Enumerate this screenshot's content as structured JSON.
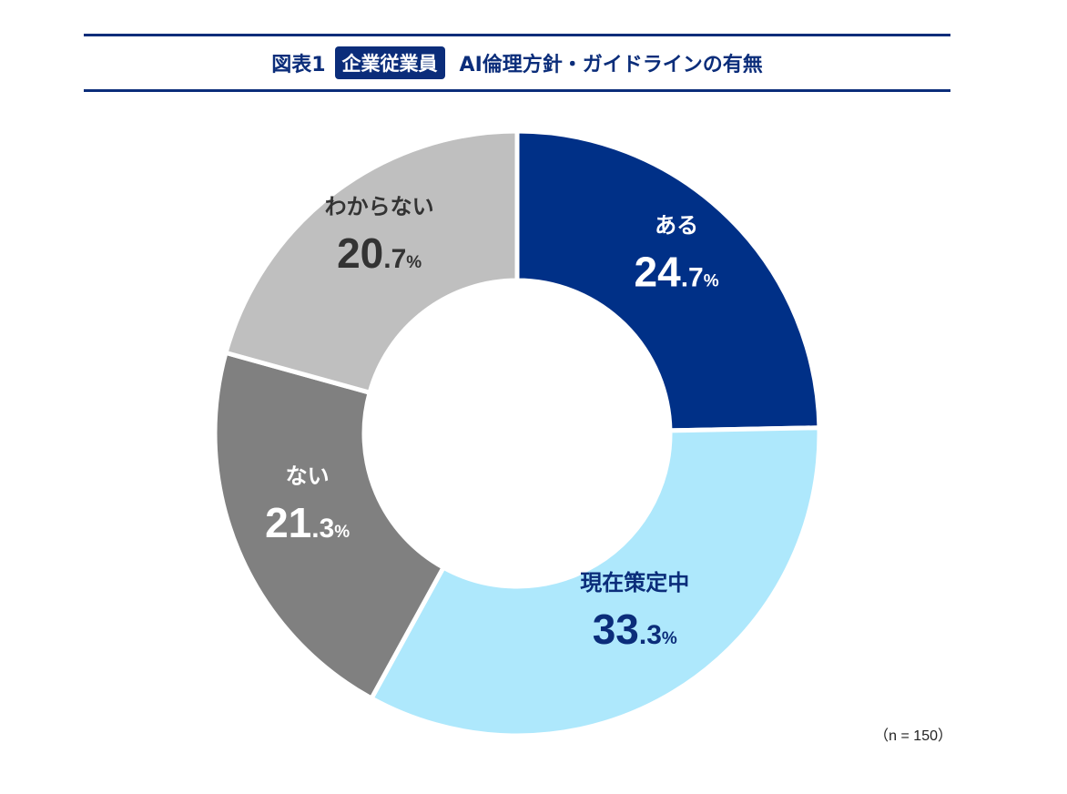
{
  "title": {
    "figure_label": "図表1",
    "badge": "企業従業員",
    "text": "AI倫理方針・ガイドラインの有無"
  },
  "chart_data": {
    "type": "pie",
    "variant": "donut",
    "slices": [
      {
        "label": "ある",
        "value": 24.7,
        "color": "#003087",
        "label_color": "#ffffff"
      },
      {
        "label": "現在策定中",
        "value": 33.3,
        "color": "#aee8fc",
        "label_color": "#0b2d7a"
      },
      {
        "label": "ない",
        "value": 21.3,
        "color": "#808080",
        "label_color": "#ffffff"
      },
      {
        "label": "わからない",
        "value": 20.7,
        "color": "#bfbfbf",
        "label_color": "#333333"
      }
    ],
    "unit": "%",
    "start": "top, clockwise"
  },
  "note": "（n = 150）"
}
